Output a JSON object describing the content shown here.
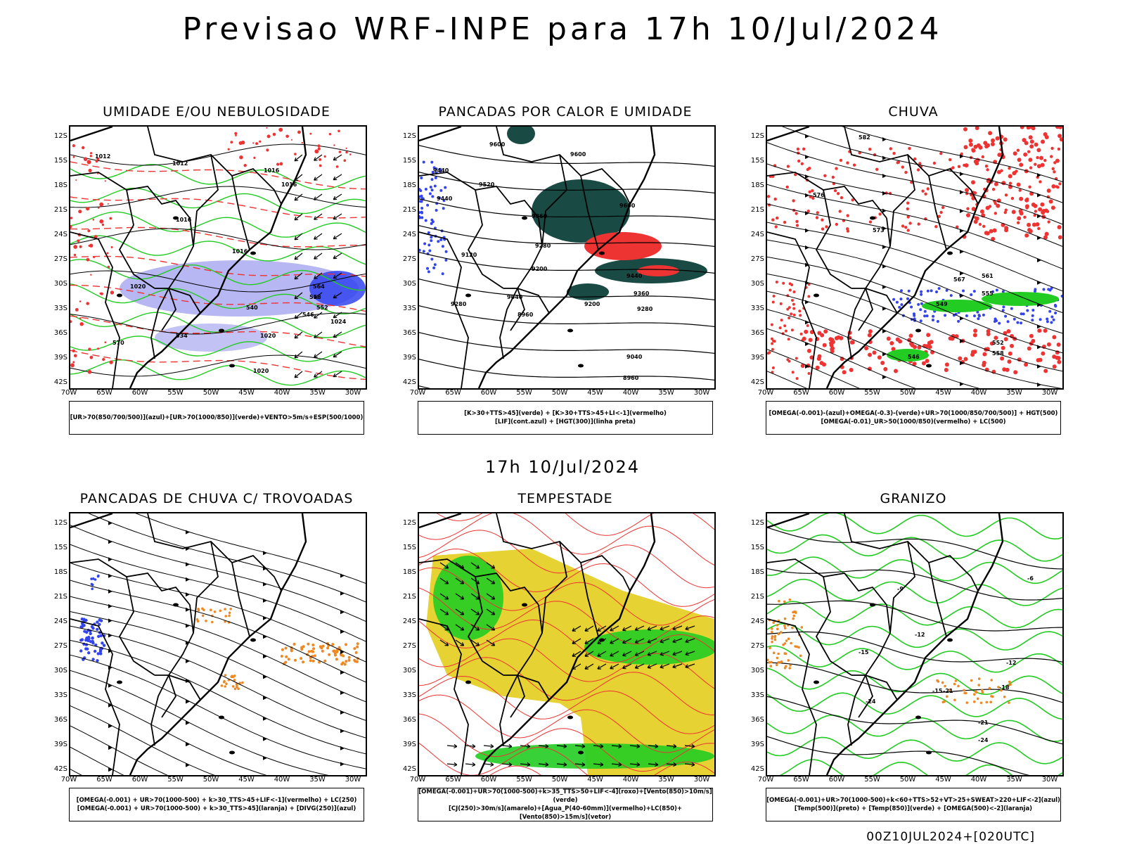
{
  "main_title": "Previsao WRF-INPE  para 17h 10/Jul/2024",
  "mid_title": "17h 10/Jul/2024",
  "footer": "00Z10JUL2024+[020UTC]",
  "lat_labels": [
    "12S",
    "15S",
    "18S",
    "21S",
    "24S",
    "27S",
    "30S",
    "33S",
    "36S",
    "39S",
    "42S"
  ],
  "lon_labels": [
    "70W",
    "65W",
    "60W",
    "55W",
    "50W",
    "45W",
    "40W",
    "35W",
    "30W"
  ],
  "colors": {
    "green": "#22cc22",
    "red": "#ee3333",
    "blue": "#3344ee",
    "lavender": "#9999ee",
    "darkteal": "#1a4a44",
    "yellow": "#e6d232",
    "orange": "#ee8822"
  },
  "panels": [
    {
      "id": "umidade",
      "title": "UMIDADE E/OU NEBULOSIDADE",
      "legend": [
        "[UR>70(850/700/500)](azul)+[UR>70(1000/850)](verde)+VENTO>5m/s+ESP(500/1000)"
      ],
      "contour_labels": [
        "1012",
        "1012",
        "1016",
        "1016",
        "1016",
        "1016",
        "1020",
        "1020",
        "1020",
        "1024",
        "570",
        "564",
        "558",
        "552",
        "546",
        "540",
        "534"
      ]
    },
    {
      "id": "pancadas-calor",
      "title": "PANCADAS POR CALOR E UMIDADE",
      "legend": [
        "[K>30+TTS>45](verde) + [K>30+TTS>45+LI<-1](vermelho)",
        "[LIF](cont.azul) + [HGT(300)](linha preta)"
      ],
      "contour_labels": [
        "9600",
        "9600",
        "9520",
        "9440",
        "9360",
        "9280",
        "9200",
        "9120",
        "9040",
        "8960",
        "9440",
        "9360",
        "9280",
        "9200",
        "9040",
        "8960",
        "9600",
        "9440",
        "9280"
      ]
    },
    {
      "id": "chuva",
      "title": "CHUVA",
      "legend": [
        "[OMEGA(-0.001)-(azul)+OMEGA(-0.3)-(verde)+UR>70(1000/850/700/500)] + HGT(500)",
        "[OMEGA(-0.01)_UR>50(1000/850)(vermelho) + LC(500)"
      ],
      "contour_labels": [
        "582",
        "576",
        "573",
        "567",
        "561",
        "555",
        "549",
        "552",
        "558",
        "546"
      ]
    },
    {
      "id": "trovoadas",
      "title": "PANCADAS DE CHUVA C/ TROVOADAS",
      "legend": [
        "[OMEGA(-0.001) + UR>70(1000-500) + k>30_TTS>45+LIF<-1](vermelho) + LC(250)",
        "[OMEGA(-0.001) + UR>70(1000-500) + k>30_TTS>45](laranja) + [DIVG(250)](azul)"
      ],
      "contour_labels": []
    },
    {
      "id": "tempestade",
      "title": "TEMPESTADE",
      "legend": [
        "[OMEGA(-0.001)+UR>70(1000-500)+k>35_TTS>50+LIF<-4](roxo)+[Vento(850)>10m/s](verde)",
        "[CJ(250)>30m/s](amarelo)+[Agua_P(40-60mm)](vermelho)+LC(850)+[Vento(850)>15m/s](vetor)"
      ],
      "contour_labels": []
    },
    {
      "id": "granizo",
      "title": "GRANIZO",
      "legend": [
        "[OMEGA(-0.001)+UR>70(1000-500)+k<60+TTS>52+VT>25+SWEAT>220+LIF<-2](azul)",
        "[Temp(500)](preto) + [Temp(850)](verde) + [OMEGA(500)<-2](laranja)"
      ],
      "contour_labels": [
        "-9",
        "-12",
        "-15",
        "-12",
        "-18",
        "-21",
        "-24",
        "-21",
        "-24",
        "-6",
        "-15"
      ]
    }
  ]
}
